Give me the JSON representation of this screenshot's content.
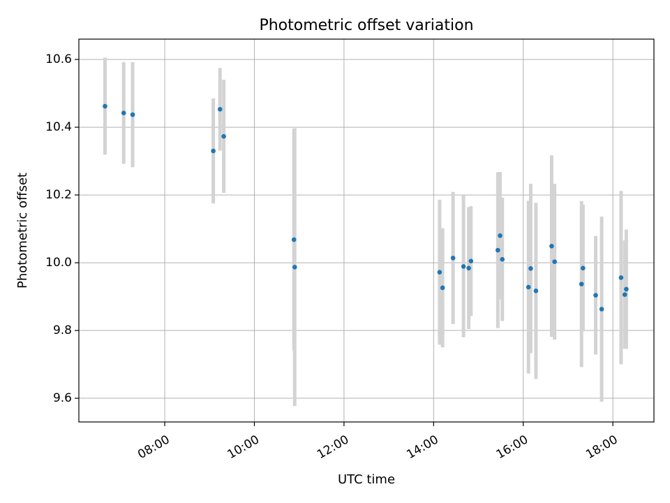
{
  "chart_data": {
    "type": "scatter",
    "title": "Photometric offset variation",
    "xlabel": "UTC time",
    "ylabel": "Photometric offset",
    "x_axis": "time",
    "xlim": [
      "06:05",
      "18:55"
    ],
    "ylim": [
      9.53,
      10.66
    ],
    "x_ticks": [
      "08:00",
      "10:00",
      "12:00",
      "14:00",
      "16:00",
      "18:00"
    ],
    "y_ticks": [
      9.6,
      9.8,
      10.0,
      10.2,
      10.4,
      10.6
    ],
    "grid": true,
    "colors": {
      "point": "#1f77b4",
      "errorbar": "#d3d3d3",
      "grid": "#b0b0b0"
    },
    "points": [
      {
        "x": "06:40",
        "y": 10.462,
        "err": 0.143
      },
      {
        "x": "07:05",
        "y": 10.442,
        "err": 0.15
      },
      {
        "x": "07:17",
        "y": 10.437,
        "err": 0.155
      },
      {
        "x": "09:05",
        "y": 10.33,
        "err": 0.155
      },
      {
        "x": "09:14",
        "y": 10.453,
        "err": 0.122
      },
      {
        "x": "09:19",
        "y": 10.373,
        "err": 0.167
      },
      {
        "x": "10:53",
        "y": 10.068,
        "err": 0.327
      },
      {
        "x": "10:54",
        "y": 9.987,
        "err": 0.41
      },
      {
        "x": "14:08",
        "y": 9.972,
        "err": 0.214
      },
      {
        "x": "14:12",
        "y": 9.926,
        "err": 0.176
      },
      {
        "x": "14:26",
        "y": 10.014,
        "err": 0.195
      },
      {
        "x": "14:40",
        "y": 9.989,
        "err": 0.209
      },
      {
        "x": "14:47",
        "y": 9.984,
        "err": 0.18
      },
      {
        "x": "14:50",
        "y": 10.005,
        "err": 0.162
      },
      {
        "x": "15:26",
        "y": 10.037,
        "err": 0.23
      },
      {
        "x": "15:29",
        "y": 10.08,
        "err": 0.188
      },
      {
        "x": "15:32",
        "y": 10.01,
        "err": 0.182
      },
      {
        "x": "16:07",
        "y": 9.928,
        "err": 0.255
      },
      {
        "x": "16:10",
        "y": 9.983,
        "err": 0.25
      },
      {
        "x": "16:17",
        "y": 9.917,
        "err": 0.26
      },
      {
        "x": "16:38",
        "y": 10.049,
        "err": 0.268
      },
      {
        "x": "16:42",
        "y": 10.003,
        "err": 0.23
      },
      {
        "x": "17:18",
        "y": 9.937,
        "err": 0.245
      },
      {
        "x": "17:20",
        "y": 9.984,
        "err": 0.187
      },
      {
        "x": "17:37",
        "y": 9.904,
        "err": 0.175
      },
      {
        "x": "17:45",
        "y": 9.863,
        "err": 0.273
      },
      {
        "x": "18:11",
        "y": 9.956,
        "err": 0.256
      },
      {
        "x": "18:16",
        "y": 9.906,
        "err": 0.16
      },
      {
        "x": "18:18",
        "y": 9.922,
        "err": 0.176
      }
    ]
  }
}
